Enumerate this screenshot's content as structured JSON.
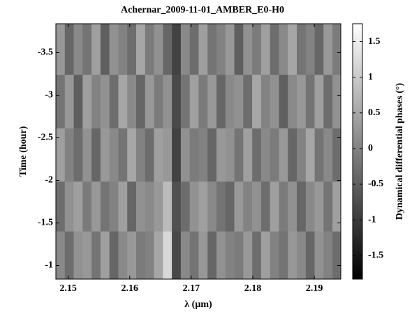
{
  "chart_data": {
    "type": "heatmap",
    "title": "Achernar_2009-11-01_AMBER_E0-H0",
    "xlabel": "λ (µm)",
    "ylabel": "Time (hour)",
    "colorbar_label": "Dynamical differential phases (°)",
    "colormap": "gray",
    "xlim": [
      2.148,
      2.1943
    ],
    "xticks": [
      2.15,
      2.16,
      2.17,
      2.18,
      2.19
    ],
    "ylim": [
      -0.84,
      -3.84
    ],
    "yticks": [
      -3.5,
      -3,
      -2.5,
      -2,
      -1.5,
      -1
    ],
    "zlim": [
      -1.83,
      1.75
    ],
    "zticks": [
      1.5,
      1,
      0.5,
      0,
      -0.5,
      -1,
      -1.5
    ],
    "x": [
      2.1487,
      2.1502,
      2.1516,
      2.1531,
      2.1545,
      2.156,
      2.1574,
      2.1589,
      2.1603,
      2.1618,
      2.1632,
      2.1647,
      2.1661,
      2.1676,
      2.169,
      2.1705,
      2.1719,
      2.1734,
      2.1748,
      2.1763,
      2.1777,
      2.1792,
      2.1806,
      2.1821,
      2.1835,
      2.185,
      2.1864,
      2.1879,
      2.1893,
      2.1908,
      2.1922,
      2.1937
    ],
    "y": [
      -3.55,
      -2.93,
      -2.29,
      -1.68,
      -1.12
    ],
    "z": [
      [
        0.3,
        -0.4,
        0.1,
        -0.2,
        0.4,
        -0.5,
        0.2,
        0.0,
        -0.3,
        0.5,
        -0.1,
        0.2,
        -0.4,
        -0.9,
        0.1,
        -0.3,
        0.4,
        -0.2,
        0.0,
        0.3,
        -0.5,
        0.2,
        -0.1,
        0.4,
        -0.3,
        0.1,
        0.5,
        -0.2,
        0.0,
        -0.4,
        0.3,
        -0.1
      ],
      [
        -0.2,
        0.3,
        -0.5,
        0.4,
        0.0,
        0.2,
        -0.3,
        0.5,
        0.1,
        -0.4,
        0.3,
        -0.1,
        0.2,
        -0.8,
        -0.2,
        0.4,
        -0.1,
        0.3,
        -0.4,
        0.1,
        0.2,
        -0.3,
        0.5,
        0.0,
        0.2,
        -0.5,
        0.1,
        0.3,
        -0.2,
        0.4,
        -0.3,
        0.2
      ],
      [
        0.4,
        0.0,
        -0.3,
        0.2,
        -0.4,
        0.3,
        0.1,
        -0.2,
        0.5,
        0.0,
        -0.3,
        0.4,
        0.3,
        -0.9,
        0.2,
        -0.1,
        0.0,
        -0.4,
        0.3,
        0.2,
        -0.2,
        0.4,
        -0.3,
        0.1,
        -0.1,
        0.3,
        -0.4,
        0.0,
        0.5,
        -0.2,
        0.1,
        -0.3
      ],
      [
        -0.3,
        0.2,
        0.4,
        -0.1,
        0.3,
        -0.2,
        0.0,
        0.4,
        -0.4,
        0.2,
        0.1,
        0.3,
        0.8,
        -0.7,
        -0.3,
        0.2,
        0.4,
        0.1,
        -0.2,
        -0.4,
        0.3,
        0.0,
        0.2,
        -0.3,
        0.4,
        -0.1,
        0.2,
        -0.4,
        0.1,
        0.3,
        -0.2,
        0.4
      ],
      [
        0.1,
        -0.3,
        0.2,
        0.3,
        -0.2,
        0.4,
        -0.4,
        0.1,
        0.3,
        -0.1,
        0.0,
        0.5,
        1.2,
        -0.8,
        0.1,
        -0.2,
        0.3,
        -0.4,
        0.2,
        0.0,
        -0.1,
        0.3,
        -0.3,
        0.4,
        0.0,
        -0.2,
        0.3,
        0.1,
        -0.4,
        0.2,
        0.0,
        -0.3
      ]
    ]
  }
}
